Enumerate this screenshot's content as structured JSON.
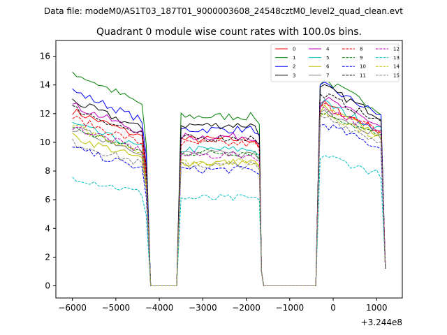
{
  "suptitle": "Data file: modeM0/AS1T03_187T01_9000003608_24548cztM0_level2_quad_clean.evt",
  "chart_data": {
    "type": "line",
    "title": "Quadrant 0 module wise count rates with 100.0s bins.",
    "xlabel": "",
    "ylabel": "",
    "x_offset_label": "+3.244e8",
    "xlim": [
      -6380,
      1590
    ],
    "ylim": [
      -0.85,
      17.1
    ],
    "x_ticks": [
      -6000,
      -5000,
      -4000,
      -3000,
      -2000,
      -1000,
      0,
      1000
    ],
    "x_tick_labels": [
      "−6000",
      "−5000",
      "−4000",
      "−3000",
      "−2000",
      "−1000",
      "0",
      "1000"
    ],
    "y_ticks": [
      0,
      2,
      4,
      6,
      8,
      10,
      12,
      14,
      16
    ],
    "y_tick_labels": [
      "0",
      "2",
      "4",
      "6",
      "8",
      "10",
      "12",
      "14",
      "16"
    ],
    "legend_position": "top-right",
    "segments": [
      {
        "start": -6000,
        "end": -4300,
        "step": 100
      },
      {
        "start": -3500,
        "end": -1700,
        "step": 100
      },
      {
        "start": -300,
        "end": 1200,
        "step": 100
      }
    ],
    "series": [
      {
        "name": "0",
        "color": "#ff0000",
        "dash": "solid",
        "levels": [
          12.2,
          10.2,
          12.8
        ]
      },
      {
        "name": "1",
        "color": "#008000",
        "dash": "solid",
        "levels": [
          14.9,
          11.8,
          14.5
        ]
      },
      {
        "name": "2",
        "color": "#0000ff",
        "dash": "solid",
        "levels": [
          13.6,
          10.9,
          14.1
        ]
      },
      {
        "name": "3",
        "color": "#000000",
        "dash": "solid",
        "levels": [
          12.9,
          11.2,
          14.0
        ]
      },
      {
        "name": "4",
        "color": "#bf00bf",
        "dash": "solid",
        "levels": [
          12.6,
          10.4,
          13.2
        ]
      },
      {
        "name": "5",
        "color": "#00bfbf",
        "dash": "solid",
        "levels": [
          11.3,
          9.5,
          12.9
        ]
      },
      {
        "name": "6",
        "color": "#bfbf00",
        "dash": "solid",
        "levels": [
          10.4,
          8.6,
          12.5
        ]
      },
      {
        "name": "7",
        "color": "#808080",
        "dash": "solid",
        "levels": [
          11.0,
          9.2,
          12.4
        ]
      },
      {
        "name": "8",
        "color": "#ff0000",
        "dash": "dashed",
        "levels": [
          11.7,
          9.9,
          12.7
        ]
      },
      {
        "name": "9",
        "color": "#008000",
        "dash": "dashed",
        "levels": [
          11.0,
          9.3,
          12.3
        ]
      },
      {
        "name": "10",
        "color": "#0000ff",
        "dash": "dashed",
        "levels": [
          9.6,
          8.1,
          11.4
        ]
      },
      {
        "name": "11",
        "color": "#000000",
        "dash": "dashed",
        "levels": [
          12.4,
          10.3,
          13.5
        ]
      },
      {
        "name": "12",
        "color": "#bf00bf",
        "dash": "dashed",
        "levels": [
          11.1,
          9.1,
          12.6
        ]
      },
      {
        "name": "13",
        "color": "#00bfbf",
        "dash": "dashed",
        "levels": [
          7.6,
          6.1,
          9.2
        ]
      },
      {
        "name": "14",
        "color": "#bfbf00",
        "dash": "dashed",
        "levels": [
          11.1,
          8.6,
          12.2
        ]
      },
      {
        "name": "15",
        "color": "#808080",
        "dash": "dashed",
        "levels": [
          10.0,
          8.4,
          11.9
        ]
      }
    ]
  }
}
